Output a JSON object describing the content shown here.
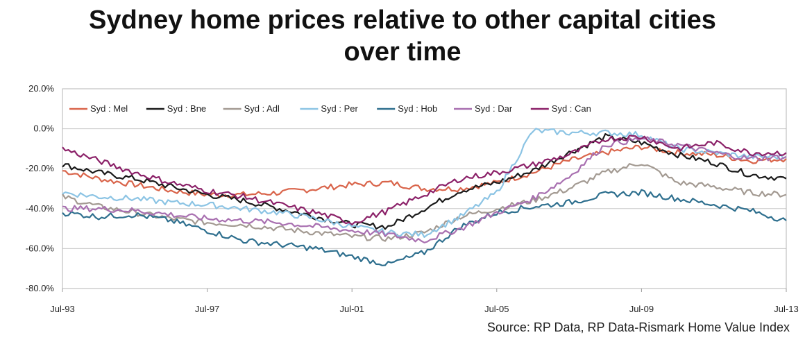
{
  "chart_data": {
    "type": "line",
    "title_line1": "Sydney home prices relative to other capital cities",
    "title_line2": "over time",
    "source": "Source: RP Data, RP Data-Rismark Home Value Index",
    "ylim": [
      -80,
      20
    ],
    "yticks": [
      20,
      0,
      -20,
      -40,
      -60,
      -80
    ],
    "ytick_labels": [
      "20.0%",
      "0.0%",
      "-20.0%",
      "-40.0%",
      "-60.0%",
      "-80.0%"
    ],
    "xlim": [
      1993.5,
      2013.5
    ],
    "xticks": [
      1993.5,
      1997.5,
      2001.5,
      2005.5,
      2009.5,
      2013.5
    ],
    "xtick_labels": [
      "Jul-93",
      "Jul-97",
      "Jul-01",
      "Jul-05",
      "Jul-09",
      "Jul-13"
    ],
    "grid": true,
    "legend_position": "top",
    "series": [
      {
        "name": "Syd : Mel",
        "color": "#d9644a",
        "x": [
          1993.5,
          1994.5,
          1995.5,
          1996.5,
          1997.5,
          1998.5,
          1999.5,
          2000.5,
          2001.5,
          2002.5,
          2003.5,
          2004.5,
          2005.5,
          2006.5,
          2007.5,
          2008.5,
          2009.5,
          2010.5,
          2011.5,
          2012.5,
          2013.5
        ],
        "y": [
          -21,
          -25,
          -28,
          -31,
          -33,
          -33,
          -32,
          -30,
          -28,
          -27,
          -30,
          -30,
          -27,
          -22,
          -16,
          -12,
          -9,
          -12,
          -13,
          -16,
          -15
        ]
      },
      {
        "name": "Syd : Bne",
        "color": "#1a1a1a",
        "x": [
          1993.5,
          1994.5,
          1995.5,
          1996.5,
          1997.5,
          1998.5,
          1999.5,
          2000.5,
          2001.5,
          2002.5,
          2003.5,
          2004.5,
          2005.5,
          2006.5,
          2007.5,
          2008.5,
          2009.5,
          2010.5,
          2011.5,
          2012.5,
          2013.5
        ],
        "y": [
          -18,
          -22,
          -25,
          -29,
          -33,
          -36,
          -40,
          -44,
          -48,
          -49,
          -40,
          -31,
          -27,
          -21,
          -12,
          -4,
          -7,
          -13,
          -17,
          -23,
          -25
        ]
      },
      {
        "name": "Syd : Adl",
        "color": "#a39a92",
        "x": [
          1993.5,
          1994.5,
          1995.5,
          1996.5,
          1997.5,
          1998.5,
          1999.5,
          2000.5,
          2001.5,
          2002.5,
          2003.5,
          2004.5,
          2005.5,
          2006.5,
          2007.5,
          2008.5,
          2009.5,
          2010.5,
          2011.5,
          2012.5,
          2013.5
        ],
        "y": [
          -34,
          -39,
          -42,
          -45,
          -47,
          -48,
          -50,
          -52,
          -54,
          -55,
          -52,
          -44,
          -40,
          -36,
          -30,
          -22,
          -17,
          -27,
          -29,
          -32,
          -33
        ]
      },
      {
        "name": "Syd : Per",
        "color": "#8cc4e4",
        "x": [
          1993.5,
          1994.5,
          1995.5,
          1996.5,
          1997.5,
          1998.5,
          1999.5,
          2000.5,
          2001.5,
          2002.5,
          2003.5,
          2004.5,
          2005.5,
          2006.5,
          2007.5,
          2008.5,
          2009.5,
          2010.5,
          2011.5,
          2012.5,
          2013.5
        ],
        "y": [
          -32,
          -34,
          -35,
          -37,
          -38,
          -40,
          -42,
          -45,
          -49,
          -52,
          -53,
          -44,
          -32,
          -1,
          -2,
          -2,
          -3,
          -10,
          -12,
          -14,
          -14
        ]
      },
      {
        "name": "Syd : Hob",
        "color": "#2e6f8e",
        "x": [
          1993.5,
          1994.5,
          1995.5,
          1996.5,
          1997.5,
          1998.5,
          1999.5,
          2000.5,
          2001.5,
          2002.5,
          2003.5,
          2004.5,
          2005.5,
          2006.5,
          2007.5,
          2008.5,
          2009.5,
          2010.5,
          2011.5,
          2012.5,
          2013.5
        ],
        "y": [
          -42,
          -44,
          -43,
          -46,
          -51,
          -56,
          -58,
          -60,
          -64,
          -68,
          -62,
          -49,
          -42,
          -39,
          -37,
          -33,
          -32,
          -35,
          -38,
          -41,
          -46
        ]
      },
      {
        "name": "Syd : Dar",
        "color": "#a86fb0",
        "x": [
          1993.5,
          1994.5,
          1995.5,
          1996.5,
          1997.5,
          1998.5,
          1999.5,
          2000.5,
          2001.5,
          2002.5,
          2003.5,
          2004.5,
          2005.5,
          2006.5,
          2007.5,
          2008.5,
          2009.5,
          2010.5,
          2011.5,
          2012.5,
          2013.5
        ],
        "y": [
          -40,
          -40,
          -41,
          -43,
          -45,
          -46,
          -47,
          -49,
          -51,
          -53,
          -56,
          -50,
          -42,
          -35,
          -24,
          -8,
          -5,
          -8,
          -12,
          -15,
          -14
        ]
      },
      {
        "name": "Syd : Can",
        "color": "#8b2068",
        "x": [
          1993.5,
          1994.5,
          1995.5,
          1996.5,
          1997.5,
          1998.5,
          1999.5,
          2000.5,
          2001.5,
          2002.5,
          2003.5,
          2004.5,
          2005.5,
          2006.5,
          2007.5,
          2008.5,
          2009.5,
          2010.5,
          2011.5,
          2012.5,
          2013.5
        ],
        "y": [
          -10,
          -16,
          -22,
          -27,
          -31,
          -34,
          -38,
          -42,
          -47,
          -41,
          -33,
          -25,
          -22,
          -18,
          -13,
          -5,
          -4,
          -10,
          -7,
          -12,
          -12
        ]
      }
    ]
  }
}
